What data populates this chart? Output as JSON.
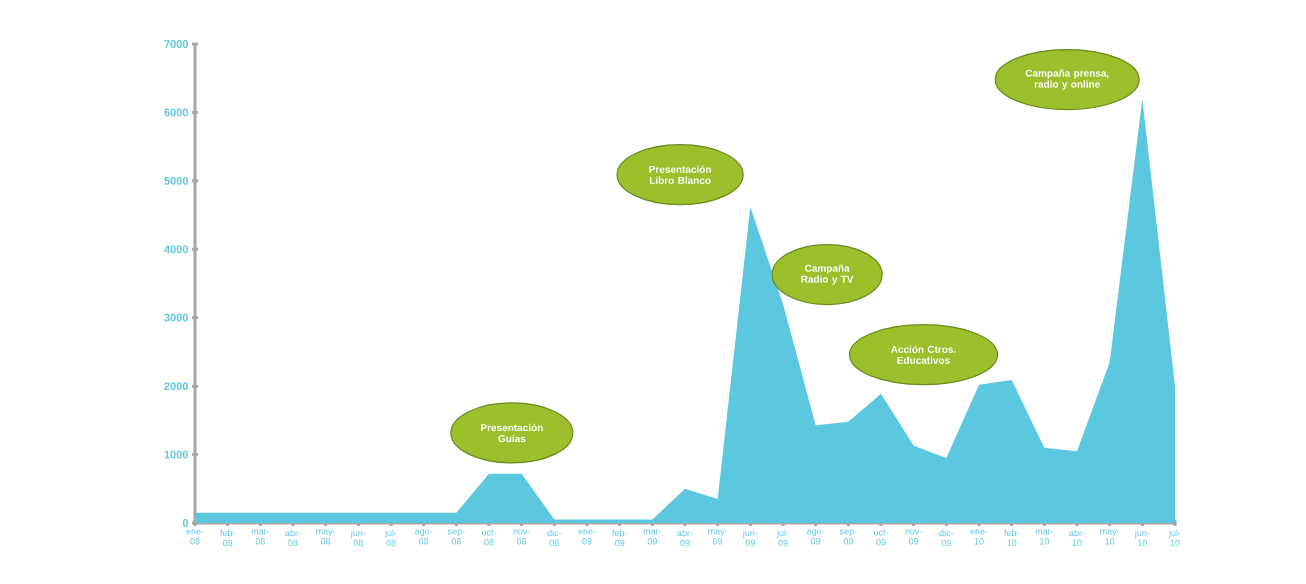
{
  "chart_data": {
    "type": "area",
    "categories": [
      "ene-08",
      "feb-08",
      "mar-08",
      "abr-08",
      "may-08",
      "jun-08",
      "jul-08",
      "ago-08",
      "sep-08",
      "oct-08",
      "nov-08",
      "dic-08",
      "ene-09",
      "feb-09",
      "mar-09",
      "abr-09",
      "may-09",
      "jun-09",
      "jul-09",
      "ago-09",
      "sep-09",
      "oct-09",
      "nov-09",
      "dic-09",
      "ene-10",
      "feb-10",
      "mar-10",
      "abr-10",
      "may-10",
      "jun-10",
      "jul-10"
    ],
    "values": [
      150,
      150,
      150,
      150,
      150,
      150,
      150,
      150,
      150,
      720,
      720,
      50,
      50,
      50,
      50,
      500,
      350,
      4620,
      3200,
      1430,
      1480,
      1890,
      1130,
      950,
      2020,
      2090,
      1100,
      1050,
      2350,
      6200,
      2000
    ],
    "color": "#5bc8e0",
    "ylim": [
      0,
      7000
    ],
    "yticks": [
      0,
      1000,
      2000,
      3000,
      4000,
      5000,
      6000,
      7000
    ],
    "annotations": [
      "Presentación Guías",
      "Presentación Libro Blanco",
      "Campaña Radio y TV",
      "Acción Ctros. Educativos",
      "Campaña prensa, radio y online"
    ]
  }
}
